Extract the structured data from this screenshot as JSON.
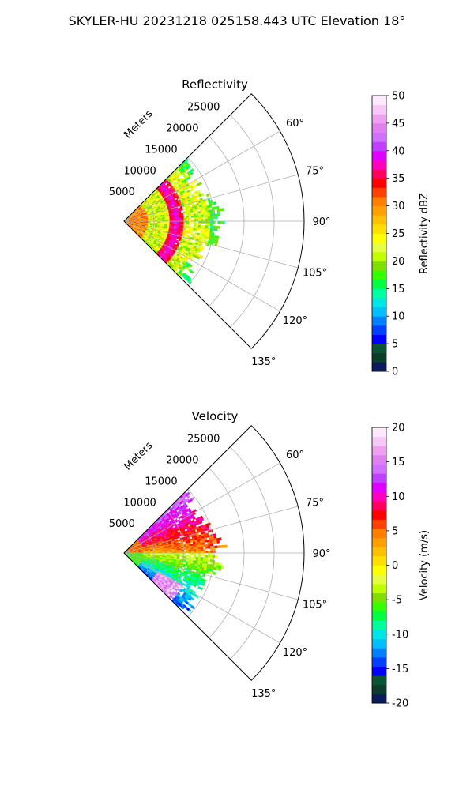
{
  "suptitle": "SKYLER-HU  20231218  025158.443 UTC Elevation 18°",
  "chart_data": [
    {
      "type": "heatmap",
      "title": "Reflectivity",
      "projection": "polar-sector",
      "angle_range_deg": [
        45,
        135
      ],
      "angle_ticks": [
        "60°",
        "75°",
        "90°",
        "105°",
        "120°",
        "135°"
      ],
      "range_label": "Meters",
      "range_max_m": 30000,
      "range_ticks": [
        "5000",
        "10000",
        "15000",
        "20000",
        "25000"
      ],
      "grid": true,
      "colorbar": {
        "label": "Reflectivity dBZ",
        "min": 0,
        "max": 50,
        "ticks": [
          "0",
          "5",
          "10",
          "15",
          "20",
          "25",
          "30",
          "35",
          "40",
          "45",
          "50"
        ],
        "colors": [
          "#0a1a5c",
          "#0b3d2a",
          "#0b5535",
          "#0000ff",
          "#0040ff",
          "#0080ff",
          "#00bfff",
          "#00e5e5",
          "#00ff9f",
          "#00ff40",
          "#33ff00",
          "#7fdf00",
          "#bfff00",
          "#e5ff40",
          "#ffff00",
          "#ffe000",
          "#ffc000",
          "#ff9f00",
          "#ff7f00",
          "#ff4000",
          "#ff0000",
          "#ff0060",
          "#ff00bf",
          "#df00ff",
          "#bf40ff",
          "#d070ff",
          "#e080f0",
          "#f0a0f0",
          "#f8c8f8",
          "#fde8fd"
        ]
      },
      "pattern": "reflectivity"
    },
    {
      "type": "heatmap",
      "title": "Velocity",
      "projection": "polar-sector",
      "angle_range_deg": [
        45,
        135
      ],
      "angle_ticks": [
        "60°",
        "75°",
        "90°",
        "105°",
        "120°",
        "135°"
      ],
      "range_label": "Meters",
      "range_max_m": 30000,
      "range_ticks": [
        "5000",
        "10000",
        "15000",
        "20000",
        "25000"
      ],
      "grid": true,
      "colorbar": {
        "label": "Velocity (m/s)",
        "min": -20,
        "max": 20,
        "ticks": [
          "-20",
          "-15",
          "-10",
          "-5",
          "0",
          "5",
          "10",
          "15",
          "20"
        ],
        "colors": [
          "#0a1a5c",
          "#0b3d2a",
          "#0b5535",
          "#0000ff",
          "#0040ff",
          "#0080ff",
          "#00bfff",
          "#00e5e5",
          "#00ff9f",
          "#00ff40",
          "#33ff00",
          "#7fdf00",
          "#bfff00",
          "#e5ff40",
          "#ffff00",
          "#ffe000",
          "#ffc000",
          "#ff9f00",
          "#ff7f00",
          "#ff4000",
          "#ff0000",
          "#ff0060",
          "#ff00bf",
          "#df00ff",
          "#bf40ff",
          "#d070ff",
          "#e080f0",
          "#f0a0f0",
          "#f8c8f8",
          "#fde8fd"
        ]
      },
      "pattern": "velocity"
    }
  ]
}
